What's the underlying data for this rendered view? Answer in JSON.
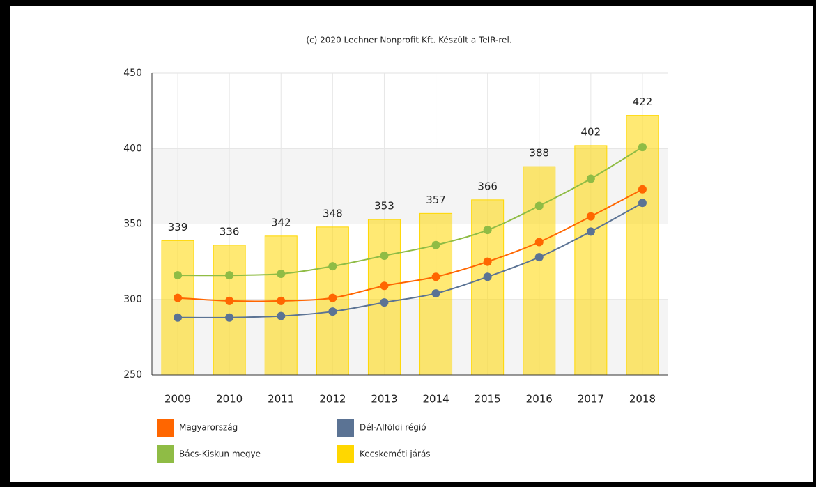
{
  "chart_data": {
    "type": "combo",
    "title": "(c) 2020 Lechner Nonprofit Kft. Készült a TeIR-rel.",
    "categories": [
      "2009",
      "2010",
      "2011",
      "2012",
      "2013",
      "2014",
      "2015",
      "2016",
      "2017",
      "2018"
    ],
    "ylim": [
      250,
      450
    ],
    "yticks": [
      250,
      300,
      350,
      400,
      450
    ],
    "grid": true,
    "series": [
      {
        "name": "Magyarország",
        "type": "line",
        "color": "#ff6600",
        "values": [
          301,
          299,
          299,
          301,
          309,
          315,
          325,
          338,
          355,
          373
        ]
      },
      {
        "name": "Dél-Alföldi régió",
        "type": "line",
        "color": "#5b7394",
        "values": [
          288,
          288,
          289,
          292,
          298,
          304,
          315,
          328,
          345,
          364
        ]
      },
      {
        "name": "Bács-Kiskun megye",
        "type": "line",
        "color": "#8fbc45",
        "values": [
          316,
          316,
          317,
          322,
          329,
          336,
          346,
          362,
          380,
          401
        ]
      },
      {
        "name": "Kecskeméti járás",
        "type": "bar",
        "color": "#ffd700",
        "values": [
          339,
          336,
          342,
          348,
          353,
          357,
          366,
          388,
          402,
          422
        ]
      }
    ]
  }
}
